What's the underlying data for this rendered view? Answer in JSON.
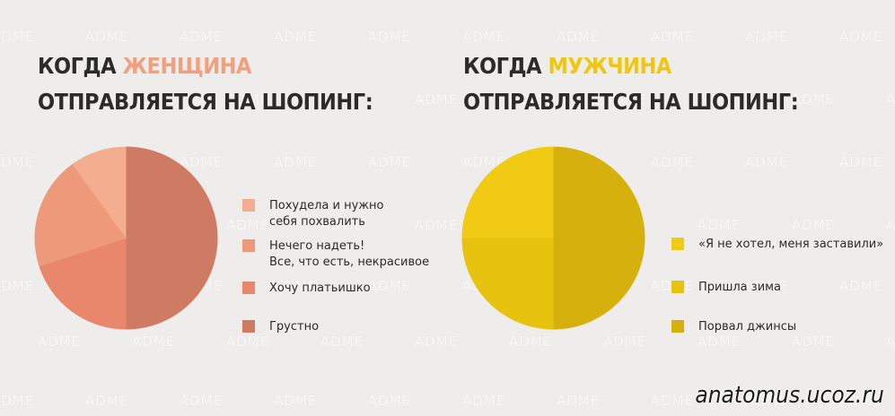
{
  "footer": {
    "url": "anatomus.ucoz.ru"
  },
  "watermark_text": "ADME",
  "chart_data": [
    {
      "type": "pie",
      "title_lines": [
        "КОГДА ",
        "ЖЕНЩИНА",
        "ОТПРАВЛЯЕТСЯ НА ШОПИНГ:"
      ],
      "title_prefix": "КОГДА ",
      "title_highlight": "ЖЕНЩИНА",
      "title_line2": "ОТПРАВЛЯЕТСЯ НА ШОПИНГ:",
      "highlight_color": "#f0a07d",
      "slices": [
        {
          "label": "Грустно",
          "value": 50,
          "color": "#cf7a63"
        },
        {
          "label": "Хочу платьишко",
          "value": 20,
          "color": "#e8876c"
        },
        {
          "label": "Нечего надеть!\nВсе, что есть, некрасивое",
          "value": 20,
          "color": "#ee9a7a"
        },
        {
          "label": "Похудела и нужно\nсебя похвалить",
          "value": 10,
          "color": "#f2ae8e"
        }
      ],
      "legend": [
        {
          "label": "Похудела и нужно\nсебя похвалить",
          "color": "#f2ae8e"
        },
        {
          "label": "Нечего надеть!\nВсе, что есть, некрасивое",
          "color": "#ee9a7a"
        },
        {
          "label": "Хочу платьишко",
          "color": "#e8876c"
        },
        {
          "label": "Грустно",
          "color": "#cf7a63"
        }
      ]
    },
    {
      "type": "pie",
      "title_prefix": "КОГДА ",
      "title_highlight": "МУЖЧИНА",
      "title_line2": "ОТПРАВЛЯЕТСЯ НА ШОПИНГ:",
      "highlight_color": "#f1c610",
      "slices": [
        {
          "label": "Порвал джинсы",
          "value": 50,
          "color": "#d6b00c"
        },
        {
          "label": "Пришла зима",
          "value": 25,
          "color": "#e7c310"
        },
        {
          "label": "«Я не хотел, меня заставили»",
          "value": 25,
          "color": "#f1ca14"
        }
      ],
      "legend": [
        {
          "label": "«Я не хотел, меня заставили»",
          "color": "#f1ca14"
        },
        {
          "label": "Пришла зима",
          "color": "#e7c310"
        },
        {
          "label": "Порвал джинсы",
          "color": "#d6b00c"
        }
      ]
    }
  ]
}
